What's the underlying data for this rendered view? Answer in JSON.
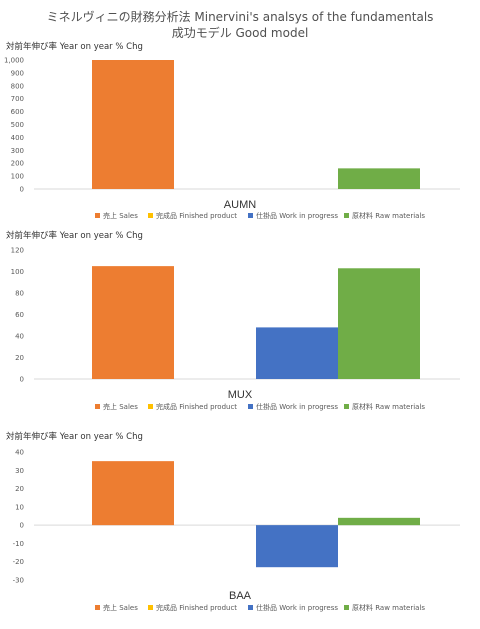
{
  "header": {
    "title_line1": "ミネルヴィニの財務分析法 Minervini's analsys of the fundamentals",
    "title_line2": "成功モデル Good model"
  },
  "colors": {
    "sales": "#ED7D31",
    "finished_product": "#FFC000",
    "work_in_progress": "#4472C4",
    "raw_materials": "#70AD47"
  },
  "chart_data": [
    {
      "type": "bar",
      "title": "AUMN",
      "ylabel": "対前年伸び率 Year on year % Chg",
      "ylim": [
        0,
        1000
      ],
      "yticks": [
        0,
        100,
        200,
        300,
        400,
        500,
        600,
        700,
        800,
        900,
        1000
      ],
      "ytick_labels": [
        "0",
        "100",
        "200",
        "300",
        "400",
        "500",
        "600",
        "700",
        "800",
        "900",
        "1,000"
      ],
      "series": [
        {
          "name": "売上 Sales",
          "value": 1000
        },
        {
          "name": "完成品 Finished product",
          "value": 0
        },
        {
          "name": "仕掛品 Work in progress",
          "value": 0
        },
        {
          "name": "原材料 Raw materials",
          "value": 160
        }
      ]
    },
    {
      "type": "bar",
      "title": "MUX",
      "ylabel": "対前年伸び率 Year on year % Chg",
      "ylim": [
        0,
        120
      ],
      "yticks": [
        0,
        20,
        40,
        60,
        80,
        100,
        120
      ],
      "ytick_labels": [
        "0",
        "20",
        "40",
        "60",
        "80",
        "100",
        "120"
      ],
      "series": [
        {
          "name": "売上 Sales",
          "value": 105
        },
        {
          "name": "完成品 Finished product",
          "value": 0
        },
        {
          "name": "仕掛品 Work in progress",
          "value": 48
        },
        {
          "name": "原材料 Raw materials",
          "value": 103
        }
      ]
    },
    {
      "type": "bar",
      "title": "BAA",
      "ylabel": "対前年伸び率 Year on year % Chg",
      "ylim": [
        -30,
        40
      ],
      "yticks": [
        -30,
        -20,
        -10,
        0,
        10,
        20,
        30,
        40
      ],
      "ytick_labels": [
        "-30",
        "-20",
        "-10",
        "0",
        "10",
        "20",
        "30",
        "40"
      ],
      "series": [
        {
          "name": "売上 Sales",
          "value": 35
        },
        {
          "name": "完成品 Finished product",
          "value": 0
        },
        {
          "name": "仕掛品 Work in progress",
          "value": -23
        },
        {
          "name": "原材料 Raw materials",
          "value": 4
        }
      ]
    }
  ]
}
